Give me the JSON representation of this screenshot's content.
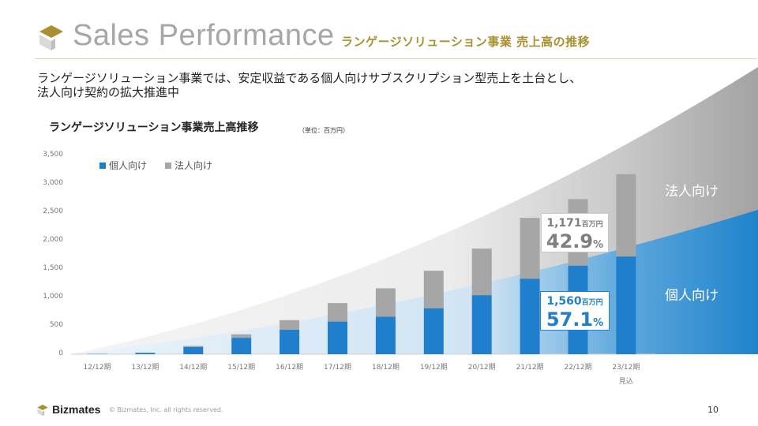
{
  "header": {
    "title": "Sales Performance",
    "subtitle": "ランゲージソリューション事業 売上高の推移"
  },
  "lead_text": {
    "line1": "ランゲージソリューション事業では、安定収益である個人向けサブスクリプション型売上を土台とし、",
    "line2": "法人向け契約の拡大推進中"
  },
  "chart_data": {
    "type": "bar",
    "stacked": true,
    "title": "ランゲージソリューション事業売上高推移",
    "unit_note": "（単位：百万円）",
    "xlabel": "",
    "ylabel": "",
    "ylim": [
      0,
      3500
    ],
    "yticks": [
      0,
      500,
      1000,
      1500,
      2000,
      2500,
      3000,
      3500
    ],
    "ytick_labels": [
      "0",
      "500",
      "1,000",
      "1,500",
      "2,000",
      "2,500",
      "3,000",
      "3,500"
    ],
    "categories": [
      "12/12期",
      "13/12期",
      "14/12期",
      "15/12期",
      "16/12期",
      "17/12期",
      "18/12期",
      "19/12期",
      "20/12期",
      "21/12期",
      "22/12期",
      "23/12期"
    ],
    "category_note": {
      "index": 11,
      "text": "見込"
    },
    "legend_position": "top-left",
    "series": [
      {
        "name": "個人向け",
        "color": "#1f7fcc",
        "values": [
          5,
          25,
          125,
          290,
          430,
          575,
          660,
          810,
          1040,
          1330,
          1560,
          1720
        ]
      },
      {
        "name": "法人向け",
        "color": "#a6a6a6",
        "values": [
          0,
          0,
          20,
          60,
          170,
          325,
          500,
          660,
          820,
          1070,
          1171,
          1450
        ]
      }
    ],
    "annotations": [
      {
        "series": "法人向け",
        "category": "22/12期",
        "amount": "1,171",
        "amount_unit": "百万円",
        "percent": "42.9",
        "percent_unit": "%"
      },
      {
        "series": "個人向け",
        "category": "22/12期",
        "amount": "1,560",
        "amount_unit": "百万円",
        "percent": "57.1",
        "percent_unit": "%"
      }
    ],
    "area_labels": {
      "corporate": "法人向け",
      "individual": "個人向け"
    }
  },
  "colors": {
    "individual": "#1f7fcc",
    "corporate": "#a6a6a6",
    "gold": "#a8912e"
  },
  "footer": {
    "brand": "Bizmates",
    "copyright": "© Bizmates, Inc. all rights reserved.",
    "page_number": "10"
  }
}
